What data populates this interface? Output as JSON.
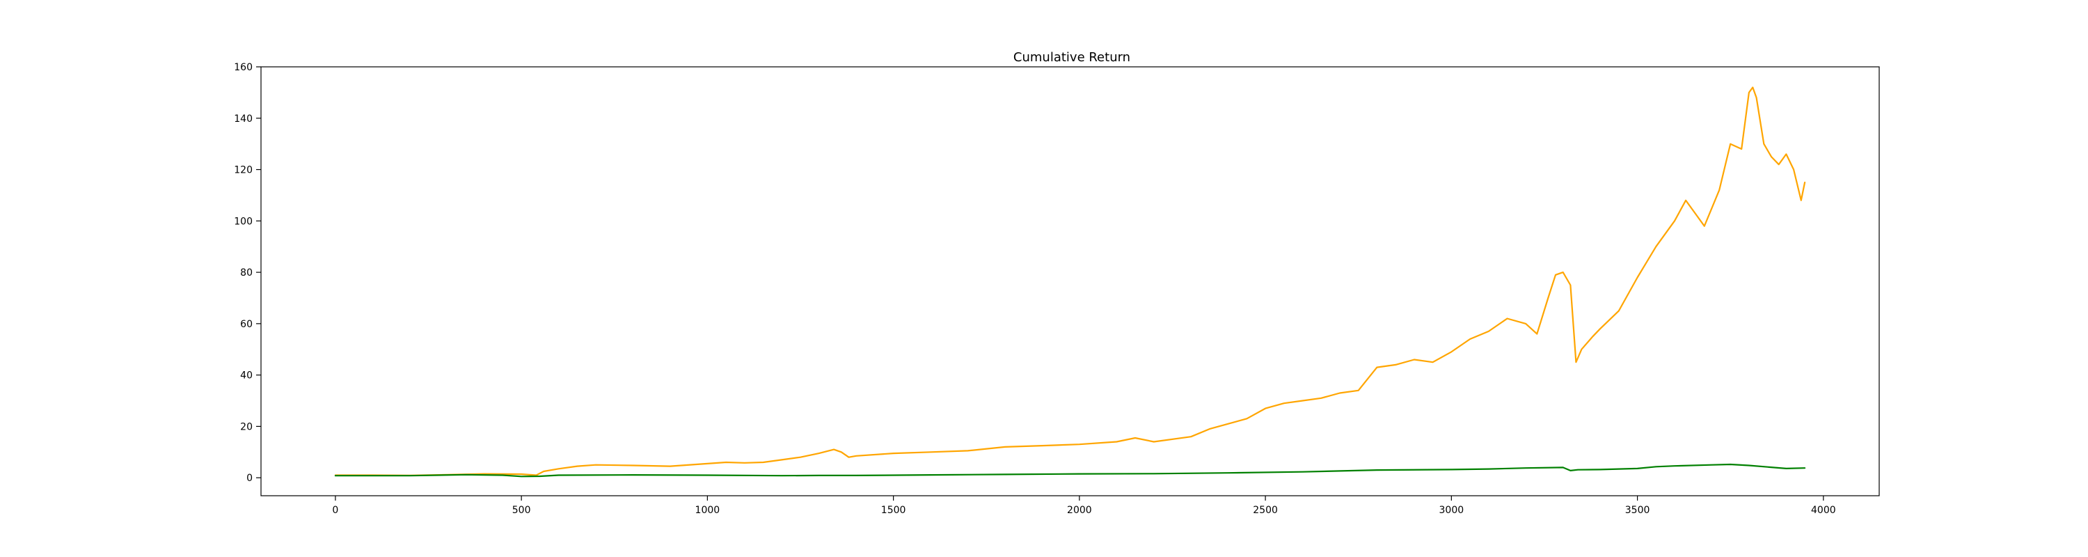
{
  "chart_data": {
    "type": "line",
    "title": "Cumulative Return",
    "xlabel": "",
    "ylabel": "",
    "xlim": [
      -200,
      4150
    ],
    "ylim": [
      -7,
      160
    ],
    "xticks": [
      0,
      500,
      1000,
      1500,
      2000,
      2500,
      3000,
      3500,
      4000
    ],
    "yticks": [
      0,
      20,
      40,
      60,
      80,
      100,
      120,
      140,
      160
    ],
    "grid": false,
    "legend": "none",
    "series": [
      {
        "color": "#ffa500",
        "x": [
          0,
          100,
          200,
          300,
          400,
          500,
          540,
          560,
          600,
          650,
          700,
          800,
          900,
          1000,
          1050,
          1100,
          1150,
          1200,
          1250,
          1300,
          1340,
          1360,
          1380,
          1400,
          1500,
          1600,
          1700,
          1800,
          1900,
          2000,
          2100,
          2150,
          2200,
          2300,
          2350,
          2400,
          2450,
          2500,
          2550,
          2600,
          2650,
          2700,
          2750,
          2800,
          2850,
          2900,
          2950,
          3000,
          3050,
          3100,
          3150,
          3200,
          3230,
          3260,
          3280,
          3300,
          3320,
          3335,
          3350,
          3380,
          3400,
          3450,
          3500,
          3550,
          3600,
          3630,
          3660,
          3680,
          3700,
          3720,
          3750,
          3780,
          3800,
          3810,
          3820,
          3840,
          3860,
          3880,
          3900,
          3920,
          3940,
          3950
        ],
        "y": [
          1,
          1,
          0.9,
          1.2,
          1.5,
          1.4,
          1.0,
          2.5,
          3.5,
          4.5,
          5,
          4.8,
          4.5,
          5.5,
          6,
          5.8,
          6,
          7,
          8,
          9.5,
          11,
          10,
          8,
          8.5,
          9.5,
          10,
          10.5,
          12,
          12.5,
          13,
          14,
          15.5,
          14,
          16,
          19,
          21,
          23,
          27,
          29,
          30,
          31,
          33,
          34,
          43,
          44,
          46,
          45,
          49,
          54,
          57,
          62,
          60,
          56,
          70,
          79,
          80,
          75,
          45,
          50,
          55,
          58,
          65,
          78,
          90,
          100,
          108,
          102,
          98,
          105,
          112,
          130,
          128,
          150,
          152,
          148,
          130,
          125,
          122,
          126,
          120,
          108,
          115
        ]
      },
      {
        "color": "#008000",
        "x": [
          0,
          200,
          350,
          450,
          500,
          550,
          600,
          800,
          1000,
          1200,
          1300,
          1400,
          1600,
          1800,
          2000,
          2200,
          2400,
          2600,
          2800,
          3000,
          3100,
          3200,
          3300,
          3320,
          3340,
          3400,
          3500,
          3550,
          3600,
          3700,
          3750,
          3800,
          3850,
          3900,
          3950
        ],
        "y": [
          0.8,
          0.8,
          1.2,
          1.0,
          0.5,
          0.6,
          1.0,
          1.1,
          1.0,
          0.8,
          0.9,
          0.9,
          1.1,
          1.3,
          1.5,
          1.6,
          1.9,
          2.3,
          3.0,
          3.2,
          3.4,
          3.8,
          4.0,
          2.8,
          3.1,
          3.2,
          3.6,
          4.3,
          4.6,
          5.0,
          5.2,
          4.8,
          4.2,
          3.6,
          3.8
        ]
      }
    ]
  }
}
